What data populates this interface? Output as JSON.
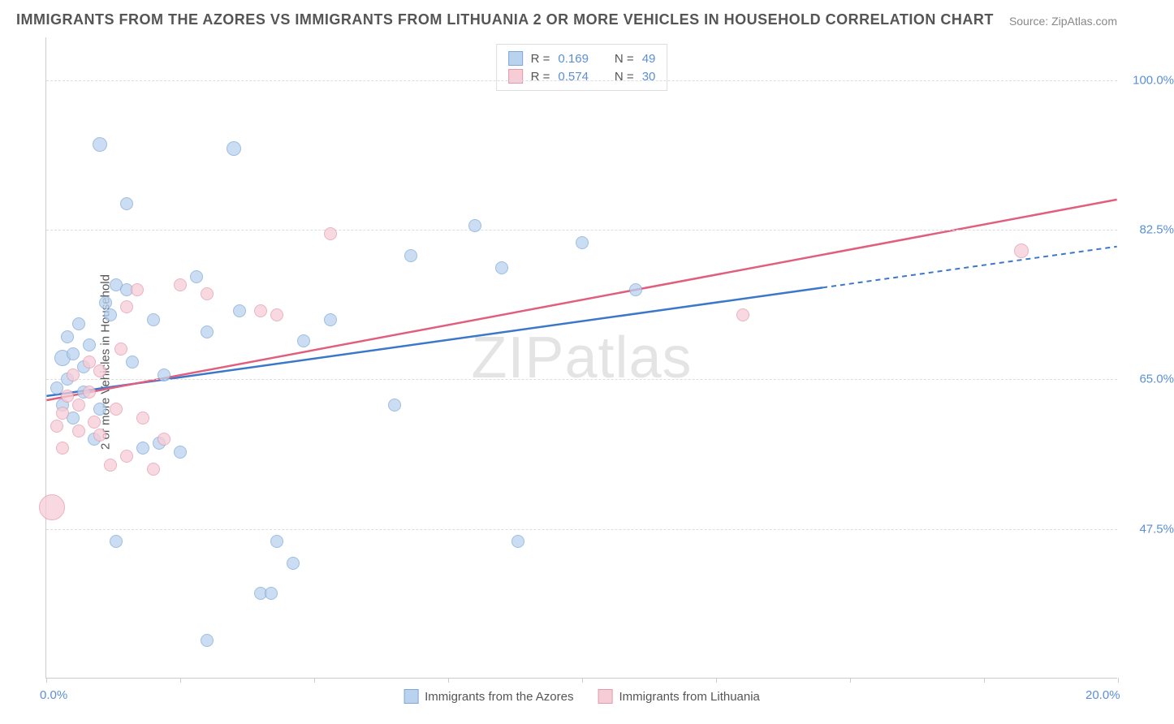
{
  "title": "IMMIGRANTS FROM THE AZORES VS IMMIGRANTS FROM LITHUANIA 2 OR MORE VEHICLES IN HOUSEHOLD CORRELATION CHART",
  "source": "Source: ZipAtlas.com",
  "y_axis_title": "2 or more Vehicles in Household",
  "watermark_a": "ZIP",
  "watermark_b": "atlas",
  "chart": {
    "type": "scatter",
    "xlim": [
      0,
      20
    ],
    "ylim": [
      30,
      105
    ],
    "x_ticks": [
      0,
      2.5,
      5,
      7.5,
      10,
      12.5,
      15,
      17.5,
      20
    ],
    "x_tick_labels": {
      "0": "0.0%",
      "20": "20.0%"
    },
    "y_gridlines": [
      47.5,
      65.0,
      82.5,
      100.0
    ],
    "y_tick_labels": [
      "47.5%",
      "65.0%",
      "82.5%",
      "100.0%"
    ],
    "background_color": "#ffffff",
    "grid_color": "#dddddd",
    "axis_color": "#cccccc",
    "label_color": "#5b8fd6",
    "series": [
      {
        "name": "Immigrants from the Azores",
        "fill_color": "#b9d2ee",
        "stroke_color": "#7fa8d8",
        "line_color": "#3b78c9",
        "r_value": "0.169",
        "n_value": "49",
        "trend": {
          "x1": 0,
          "y1": 63.0,
          "x2": 20,
          "y2": 80.5,
          "solid_end_x": 14.5
        },
        "points": [
          {
            "x": 0.2,
            "y": 64.0,
            "r": 8
          },
          {
            "x": 0.3,
            "y": 62.0,
            "r": 8
          },
          {
            "x": 0.3,
            "y": 67.5,
            "r": 10
          },
          {
            "x": 0.4,
            "y": 70.0,
            "r": 8
          },
          {
            "x": 0.4,
            "y": 65.0,
            "r": 8
          },
          {
            "x": 0.5,
            "y": 60.5,
            "r": 8
          },
          {
            "x": 0.5,
            "y": 68.0,
            "r": 8
          },
          {
            "x": 0.6,
            "y": 71.5,
            "r": 8
          },
          {
            "x": 0.7,
            "y": 66.5,
            "r": 8
          },
          {
            "x": 0.7,
            "y": 63.5,
            "r": 8
          },
          {
            "x": 0.8,
            "y": 69.0,
            "r": 8
          },
          {
            "x": 0.9,
            "y": 58.0,
            "r": 8
          },
          {
            "x": 1.0,
            "y": 92.5,
            "r": 9
          },
          {
            "x": 1.0,
            "y": 61.5,
            "r": 8
          },
          {
            "x": 1.1,
            "y": 74.0,
            "r": 8
          },
          {
            "x": 1.2,
            "y": 72.5,
            "r": 8
          },
          {
            "x": 1.3,
            "y": 76.0,
            "r": 8
          },
          {
            "x": 1.3,
            "y": 46.0,
            "r": 8
          },
          {
            "x": 1.5,
            "y": 85.5,
            "r": 8
          },
          {
            "x": 1.5,
            "y": 75.5,
            "r": 8
          },
          {
            "x": 1.6,
            "y": 67.0,
            "r": 8
          },
          {
            "x": 1.8,
            "y": 57.0,
            "r": 8
          },
          {
            "x": 2.0,
            "y": 72.0,
            "r": 8
          },
          {
            "x": 2.1,
            "y": 57.5,
            "r": 8
          },
          {
            "x": 2.2,
            "y": 65.5,
            "r": 8
          },
          {
            "x": 2.5,
            "y": 56.5,
            "r": 8
          },
          {
            "x": 2.8,
            "y": 77.0,
            "r": 8
          },
          {
            "x": 3.0,
            "y": 34.5,
            "r": 8
          },
          {
            "x": 3.0,
            "y": 70.5,
            "r": 8
          },
          {
            "x": 3.5,
            "y": 92.0,
            "r": 9
          },
          {
            "x": 3.6,
            "y": 73.0,
            "r": 8
          },
          {
            "x": 4.0,
            "y": 40.0,
            "r": 8
          },
          {
            "x": 4.2,
            "y": 40.0,
            "r": 8
          },
          {
            "x": 4.3,
            "y": 46.0,
            "r": 8
          },
          {
            "x": 4.6,
            "y": 43.5,
            "r": 8
          },
          {
            "x": 4.8,
            "y": 69.5,
            "r": 8
          },
          {
            "x": 5.3,
            "y": 72.0,
            "r": 8
          },
          {
            "x": 6.5,
            "y": 62.0,
            "r": 8
          },
          {
            "x": 6.8,
            "y": 79.5,
            "r": 8
          },
          {
            "x": 8.0,
            "y": 83.0,
            "r": 8
          },
          {
            "x": 8.5,
            "y": 78.0,
            "r": 8
          },
          {
            "x": 8.8,
            "y": 46.0,
            "r": 8
          },
          {
            "x": 10.0,
            "y": 81.0,
            "r": 8
          },
          {
            "x": 11.0,
            "y": 75.5,
            "r": 8
          }
        ]
      },
      {
        "name": "Immigrants from Lithuania",
        "fill_color": "#f6cdd7",
        "stroke_color": "#e59aab",
        "line_color": "#e15f7e",
        "r_value": "0.574",
        "n_value": "30",
        "trend": {
          "x1": 0,
          "y1": 62.5,
          "x2": 20,
          "y2": 86.0,
          "solid_end_x": 20
        },
        "points": [
          {
            "x": 0.1,
            "y": 50.0,
            "r": 16
          },
          {
            "x": 0.2,
            "y": 59.5,
            "r": 8
          },
          {
            "x": 0.3,
            "y": 61.0,
            "r": 8
          },
          {
            "x": 0.3,
            "y": 57.0,
            "r": 8
          },
          {
            "x": 0.4,
            "y": 63.0,
            "r": 8
          },
          {
            "x": 0.5,
            "y": 65.5,
            "r": 8
          },
          {
            "x": 0.6,
            "y": 62.0,
            "r": 8
          },
          {
            "x": 0.6,
            "y": 59.0,
            "r": 8
          },
          {
            "x": 0.8,
            "y": 67.0,
            "r": 8
          },
          {
            "x": 0.8,
            "y": 63.5,
            "r": 8
          },
          {
            "x": 0.9,
            "y": 60.0,
            "r": 8
          },
          {
            "x": 1.0,
            "y": 66.0,
            "r": 8
          },
          {
            "x": 1.0,
            "y": 58.5,
            "r": 8
          },
          {
            "x": 1.2,
            "y": 55.0,
            "r": 8
          },
          {
            "x": 1.3,
            "y": 61.5,
            "r": 8
          },
          {
            "x": 1.4,
            "y": 68.5,
            "r": 8
          },
          {
            "x": 1.5,
            "y": 56.0,
            "r": 8
          },
          {
            "x": 1.5,
            "y": 73.5,
            "r": 8
          },
          {
            "x": 1.7,
            "y": 75.5,
            "r": 8
          },
          {
            "x": 1.8,
            "y": 60.5,
            "r": 8
          },
          {
            "x": 2.0,
            "y": 54.5,
            "r": 8
          },
          {
            "x": 2.2,
            "y": 58.0,
            "r": 8
          },
          {
            "x": 2.5,
            "y": 76.0,
            "r": 8
          },
          {
            "x": 3.0,
            "y": 75.0,
            "r": 8
          },
          {
            "x": 4.0,
            "y": 73.0,
            "r": 8
          },
          {
            "x": 4.3,
            "y": 72.5,
            "r": 8
          },
          {
            "x": 5.3,
            "y": 82.0,
            "r": 8
          },
          {
            "x": 13.0,
            "y": 72.5,
            "r": 8
          },
          {
            "x": 18.2,
            "y": 80.0,
            "r": 9
          }
        ]
      }
    ]
  },
  "legend_labels": {
    "r": "R  =",
    "n": "N  ="
  }
}
